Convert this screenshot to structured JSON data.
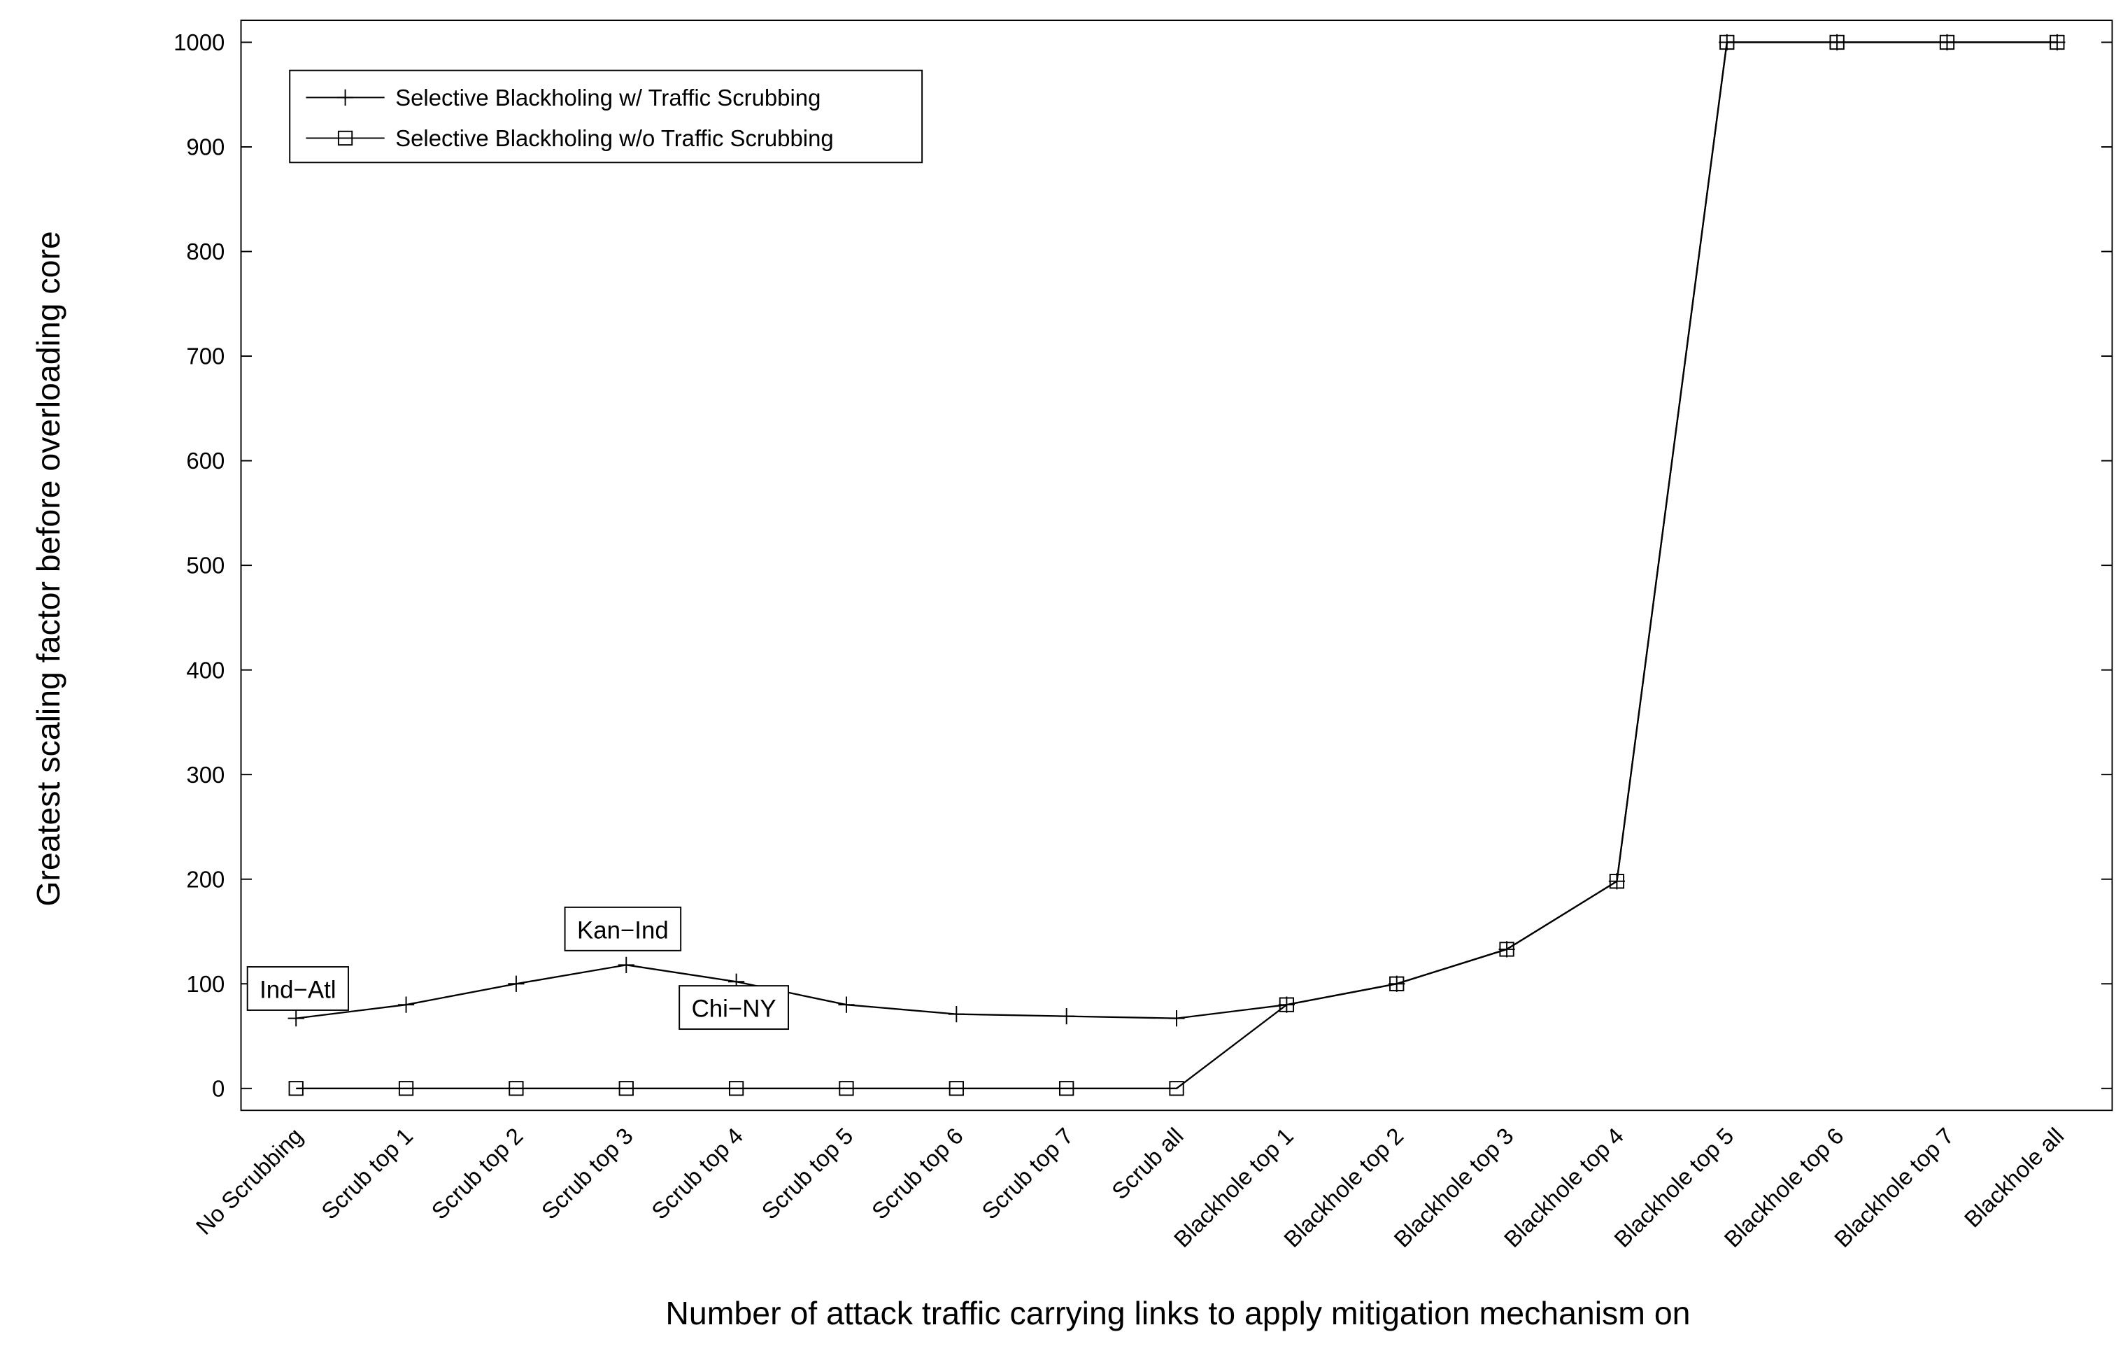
{
  "chart_data": {
    "type": "line",
    "x_label": "Number of attack traffic carrying links to apply mitigation mechanism on",
    "y_label": "Greatest scaling factor before overloading core",
    "categories": [
      "No Scrubbing",
      "Scrub top 1",
      "Scrub top 2",
      "Scrub top 3",
      "Scrub top 4",
      "Scrub top 5",
      "Scrub top 6",
      "Scrub top 7",
      "Scrub all",
      "Blackhole top 1",
      "Blackhole top 2",
      "Blackhole top 3",
      "Blackhole top 4",
      "Blackhole top 5",
      "Blackhole top 6",
      "Blackhole top 7",
      "Blackhole all"
    ],
    "series": [
      {
        "name": "Selective Blackholing w/ Traffic Scrubbing",
        "color": "#000000",
        "marker": "plus",
        "values": [
          67,
          80,
          100,
          118,
          102,
          80,
          71,
          69,
          67,
          80,
          100,
          133,
          198,
          1000,
          1000,
          1000,
          1000
        ]
      },
      {
        "name": "Selective Blackholing w/o Traffic Scrubbing",
        "color": "#000000",
        "marker": "square",
        "values": [
          0,
          0,
          0,
          0,
          0,
          0,
          0,
          0,
          0,
          80,
          100,
          133,
          198,
          1000,
          1000,
          1000,
          1000
        ]
      }
    ],
    "annotations": [
      "Ind−Atl",
      "Kan−Ind",
      "Chi−NY"
    ],
    "ylim": [
      -21,
      1021
    ],
    "yticks": [
      0,
      100,
      200,
      300,
      400,
      500,
      600,
      700,
      800,
      900,
      1000
    ],
    "legend": "upper left",
    "grid": false
  }
}
